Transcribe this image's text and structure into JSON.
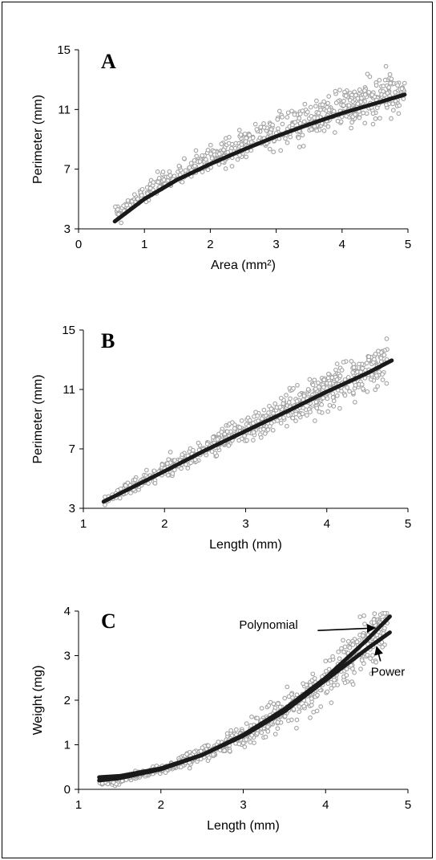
{
  "chart_data": [
    {
      "panel": "A",
      "type": "scatter",
      "xlabel": "Area (mm²)",
      "ylabel": "Perimeter (mm)",
      "xlim": [
        0,
        5
      ],
      "ylim": [
        3,
        15
      ],
      "xticks": [
        "0",
        "1",
        "2",
        "3",
        "4",
        "5"
      ],
      "yticks": [
        "3",
        "7",
        "11",
        "15"
      ],
      "point_color": "#a3a3a3",
      "line_color": "#1a1a1a",
      "series": [
        {
          "kind": "points",
          "x_range": [
            0.55,
            4.95
          ],
          "trend": {
            "form": "power",
            "a": 5.3,
            "b": 0.53
          },
          "n": 650
        },
        {
          "kind": "fit",
          "x": [
            0.55,
            1.0,
            1.5,
            2.0,
            2.5,
            3.0,
            3.5,
            4.0,
            4.5,
            4.95
          ],
          "y": [
            3.5,
            5.0,
            6.3,
            7.35,
            8.3,
            9.2,
            10.0,
            10.75,
            11.4,
            12.0
          ]
        }
      ]
    },
    {
      "panel": "B",
      "type": "scatter",
      "xlabel": "Length (mm)",
      "ylabel": "Perimeter (mm)",
      "xlim": [
        1,
        5
      ],
      "ylim": [
        3,
        15
      ],
      "xticks": [
        "1",
        "2",
        "3",
        "4",
        "5"
      ],
      "yticks": [
        "3",
        "7",
        "11",
        "15"
      ],
      "point_color": "#a3a3a3",
      "line_color": "#1a1a1a",
      "series": [
        {
          "kind": "points",
          "x_range": [
            1.25,
            4.75
          ],
          "trend": {
            "form": "power",
            "a": 2.85,
            "b": 0.97
          },
          "n": 650
        },
        {
          "kind": "fit",
          "x": [
            1.25,
            2.0,
            2.5,
            3.0,
            3.5,
            4.0,
            4.5,
            4.8
          ],
          "y": [
            3.45,
            5.5,
            6.9,
            8.2,
            9.5,
            10.85,
            12.1,
            12.95
          ]
        }
      ]
    },
    {
      "panel": "C",
      "type": "scatter",
      "xlabel": "Length (mm)",
      "ylabel": "Weight (mg)",
      "xlim": [
        1,
        5
      ],
      "ylim": [
        0,
        4
      ],
      "xticks": [
        "1",
        "2",
        "3",
        "4",
        "5"
      ],
      "yticks": [
        "0",
        "1",
        "2",
        "3",
        "4"
      ],
      "point_color": "#a3a3a3",
      "line_color": "#1a1a1a",
      "annotations": [
        {
          "text": "Polynomial",
          "x": 2.95,
          "y": 3.6,
          "arrow_to": [
            4.6,
            3.62
          ]
        },
        {
          "text": "Power",
          "x": 4.55,
          "y": 2.55,
          "arrow_to": [
            4.62,
            3.2
          ]
        }
      ],
      "series": [
        {
          "kind": "points",
          "x_range": [
            1.25,
            4.75
          ],
          "trend": {
            "form": "power",
            "a": 0.085,
            "b": 2.42
          },
          "n": 700
        },
        {
          "name": "Polynomial",
          "kind": "fit",
          "x": [
            1.25,
            1.5,
            2.0,
            2.5,
            3.0,
            3.5,
            4.0,
            4.5,
            4.78
          ],
          "y": [
            0.27,
            0.3,
            0.47,
            0.77,
            1.22,
            1.8,
            2.5,
            3.35,
            3.88
          ]
        },
        {
          "name": "Power",
          "kind": "fit",
          "x": [
            1.25,
            1.5,
            2.0,
            2.5,
            3.0,
            3.5,
            4.0,
            4.5,
            4.78
          ],
          "y": [
            0.2,
            0.25,
            0.45,
            0.77,
            1.2,
            1.75,
            2.45,
            3.15,
            3.52
          ]
        }
      ]
    }
  ]
}
